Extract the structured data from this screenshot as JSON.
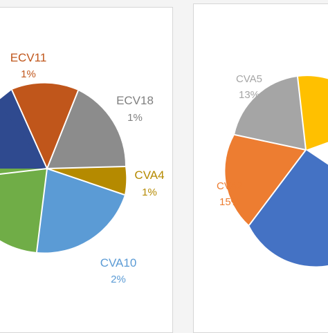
{
  "colors": {
    "background": "#f4f4f4",
    "panel": "#ffffff",
    "dark_navy": "#2f4a8f",
    "brown_orange": "#c0561b",
    "gray": "#8c8c8c",
    "olive_gold": "#b58a00",
    "light_blue": "#5b9bd5",
    "green": "#70ad47",
    "orange": "#ed7d31",
    "light_gray": "#a5a5a5",
    "yellow": "#ffc000",
    "medium_blue": "#4472c4"
  },
  "chart_data": [
    {
      "type": "pie",
      "title": "",
      "slices_visible": [
        {
          "label": "ECV11",
          "value_label": "1%",
          "color": "#c0561b"
        },
        {
          "label": "ECV18",
          "value_label": "1%",
          "color": "#8c8c8c"
        },
        {
          "label": "CVA4",
          "value_label": "1%",
          "color": "#b58a00"
        },
        {
          "label": "CVA10",
          "value_label": "2%",
          "color": "#5b9bd5"
        },
        {
          "label": "",
          "value_label": "",
          "color": "#70ad47"
        },
        {
          "label": "",
          "value_label": "",
          "color": "#2f4a8f"
        }
      ]
    },
    {
      "type": "pie",
      "title": "",
      "slices_visible": [
        {
          "label": "CVA5",
          "value_label": "13%",
          "color": "#a5a5a5"
        },
        {
          "label": "CVA2",
          "value_label": "15%",
          "color": "#ed7d31"
        },
        {
          "label": "",
          "value_label": "",
          "color": "#ffc000"
        },
        {
          "label": "",
          "value_label": "",
          "color": "#4472c4"
        }
      ]
    }
  ]
}
